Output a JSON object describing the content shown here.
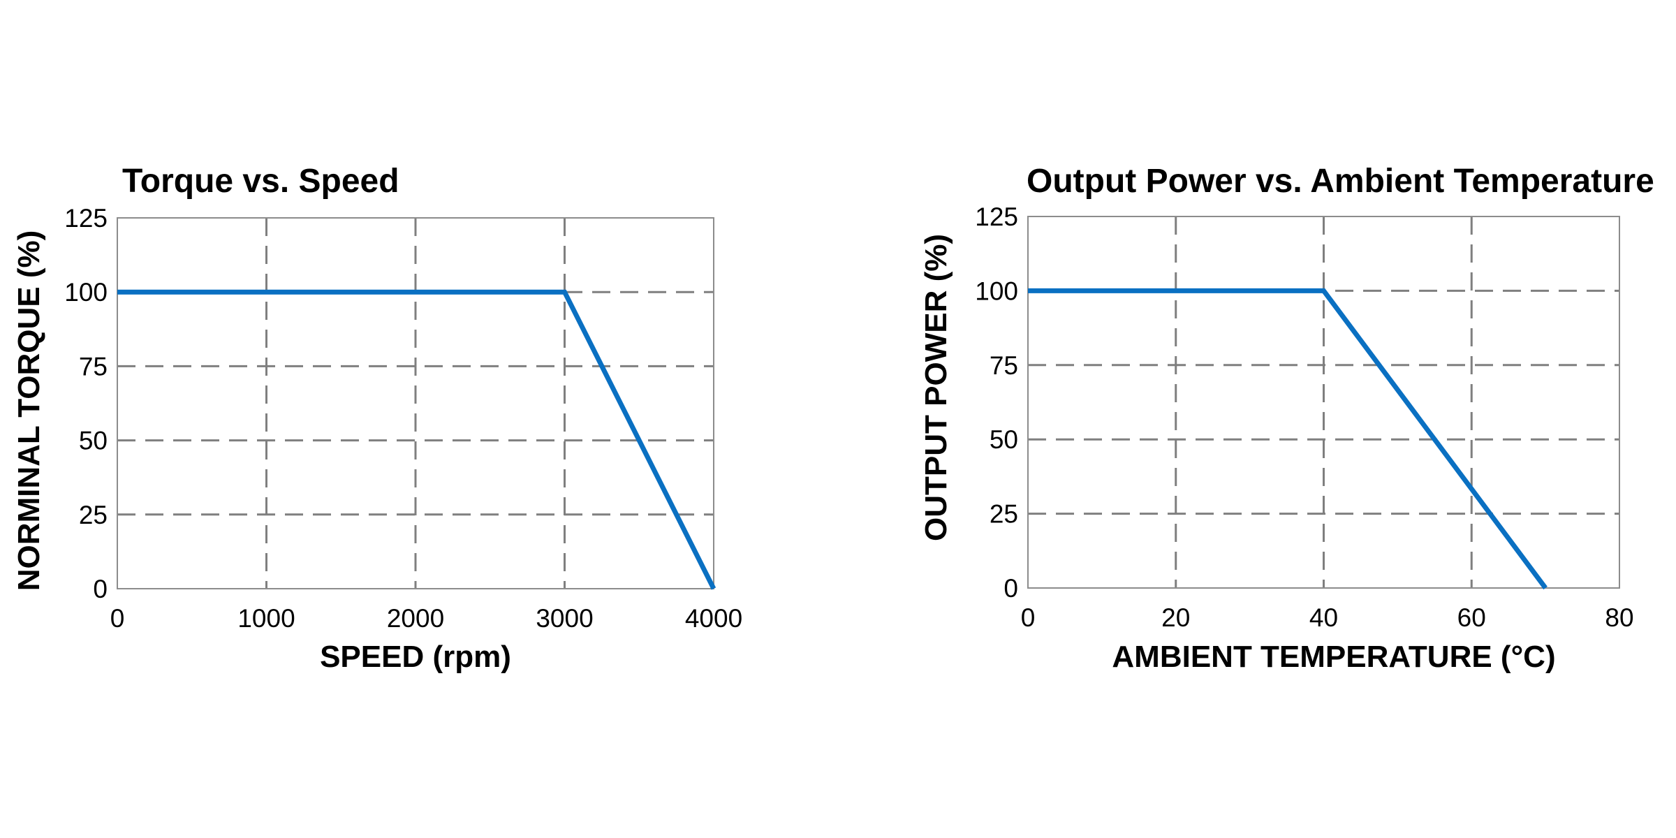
{
  "chart_data": [
    {
      "type": "line",
      "title": "Torque vs. Speed",
      "xlabel": "SPEED (rpm)",
      "ylabel": "NORMINAL TORQUE (%)",
      "xlim": [
        0,
        4000
      ],
      "ylim": [
        0,
        125
      ],
      "xticks": [
        0,
        1000,
        2000,
        3000,
        4000
      ],
      "yticks": [
        0,
        25,
        50,
        75,
        100,
        125
      ],
      "xtick_labels": [
        "0",
        "1000",
        "2000",
        "3000",
        "4000"
      ],
      "ytick_labels": [
        "0",
        "25",
        "50",
        "75",
        "100",
        "125"
      ],
      "grid": true,
      "grid_style": "dashed",
      "line_color": "#0A70C2",
      "series": [
        {
          "x": [
            0,
            3000,
            4000
          ],
          "y": [
            100,
            100,
            0
          ]
        }
      ]
    },
    {
      "type": "line",
      "title": "Output Power vs. Ambient Temperature",
      "xlabel": "AMBIENT TEMPERATURE (°C)",
      "ylabel": "OUTPUT POWER (%)",
      "xlim": [
        0,
        80
      ],
      "ylim": [
        0,
        125
      ],
      "xticks": [
        0,
        20,
        40,
        60,
        80
      ],
      "yticks": [
        0,
        25,
        50,
        75,
        100,
        125
      ],
      "xtick_labels": [
        "0",
        "20",
        "40",
        "60",
        "80"
      ],
      "ytick_labels": [
        "0",
        "25",
        "50",
        "75",
        "100",
        "125"
      ],
      "grid": true,
      "grid_style": "dashed",
      "line_color": "#0A70C2",
      "series": [
        {
          "x": [
            0,
            40,
            70
          ],
          "y": [
            100,
            100,
            0
          ]
        }
      ]
    }
  ]
}
